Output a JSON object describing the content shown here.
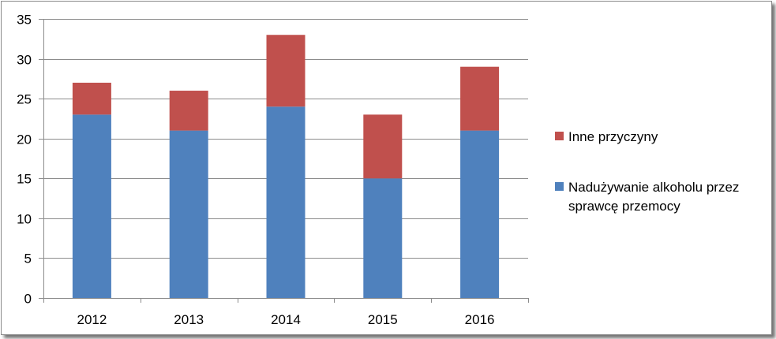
{
  "chart_data": {
    "type": "bar",
    "stacked": true,
    "categories": [
      "2012",
      "2013",
      "2014",
      "2015",
      "2016"
    ],
    "series": [
      {
        "name": "Nadużywanie alkoholu przez sprawcę przemocy",
        "values": [
          23,
          21,
          24,
          15,
          21
        ],
        "color": "#4F81BD"
      },
      {
        "name": "Inne przyczyny",
        "values": [
          4,
          5,
          9,
          8,
          8
        ],
        "color": "#C0504D"
      }
    ],
    "title": "",
    "xlabel": "",
    "ylabel": "",
    "ylim": [
      0,
      35
    ],
    "yticks": [
      "0",
      "5",
      "10",
      "15",
      "20",
      "25",
      "30",
      "35"
    ],
    "grid": true,
    "legend_position": "right",
    "legend": [
      {
        "lines": [
          "Inne przyczyny"
        ],
        "color": "#C0504D"
      },
      {
        "lines": [
          "Nadużywanie alkoholu przez",
          "sprawcę przemocy"
        ],
        "color": "#4F81BD"
      }
    ]
  }
}
